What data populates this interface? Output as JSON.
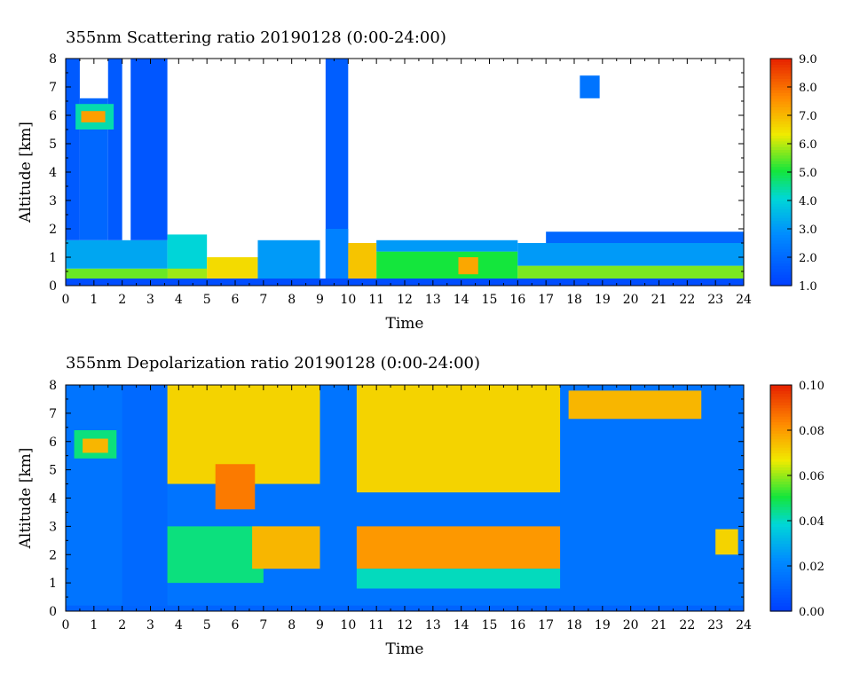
{
  "chart_data": [
    {
      "type": "heatmap",
      "title": "355nm Scattering ratio  20190128 (0:00-24:00)",
      "xlabel": "Time",
      "ylabel": "Altitude [km]",
      "xlim": [
        0,
        24
      ],
      "ylim": [
        0,
        8
      ],
      "x_ticks": [
        "0",
        "1",
        "2",
        "3",
        "4",
        "5",
        "6",
        "7",
        "8",
        "9",
        "10",
        "11",
        "12",
        "13",
        "14",
        "15",
        "16",
        "17",
        "18",
        "19",
        "20",
        "21",
        "22",
        "23",
        "24"
      ],
      "y_ticks": [
        "0",
        "1",
        "2",
        "3",
        "4",
        "5",
        "6",
        "7",
        "8"
      ],
      "colorbar": {
        "range": [
          1.0,
          9.0
        ],
        "ticks": [
          "1.0",
          "2.0",
          "3.0",
          "4.0",
          "5.0",
          "6.0",
          "7.0",
          "8.0",
          "9.0"
        ]
      },
      "background_color": "#ffffff",
      "regions": [
        {
          "t0": 0,
          "t1": 24,
          "z0": 0.0,
          "z1": 0.25,
          "value": 1.3
        },
        {
          "t0": 0,
          "t1": 3.6,
          "z0": 0.25,
          "z1": 0.6,
          "value": 5.5
        },
        {
          "t0": 0,
          "t1": 3.6,
          "z0": 0.6,
          "z1": 1.6,
          "value": 3.2
        },
        {
          "t0": 0,
          "t1": 0.5,
          "z0": 1.6,
          "z1": 8.0,
          "value": 1.6
        },
        {
          "t0": 0.5,
          "t1": 1.5,
          "z0": 1.6,
          "z1": 6.6,
          "value": 1.9
        },
        {
          "t0": 1.5,
          "t1": 2.0,
          "z0": 1.6,
          "z1": 8.0,
          "value": 1.6
        },
        {
          "t0": 2.3,
          "t1": 3.6,
          "z0": 1.6,
          "z1": 8.0,
          "value": 1.5
        },
        {
          "t0": 0.35,
          "t1": 1.7,
          "z0": 5.5,
          "z1": 6.4,
          "value": 4.3
        },
        {
          "t0": 0.55,
          "t1": 1.4,
          "z0": 5.75,
          "z1": 6.15,
          "value": 7.3
        },
        {
          "t0": 3.6,
          "t1": 5.0,
          "z0": 0.25,
          "z1": 1.8,
          "value": 4.0
        },
        {
          "t0": 3.6,
          "t1": 5.0,
          "z0": 0.25,
          "z1": 0.6,
          "value": 5.8
        },
        {
          "t0": 5.0,
          "t1": 6.8,
          "z0": 0.25,
          "z1": 1.0,
          "value": 6.5
        },
        {
          "t0": 6.8,
          "t1": 9.0,
          "z0": 0.25,
          "z1": 1.6,
          "value": 3.0
        },
        {
          "t0": 9.2,
          "t1": 10.0,
          "z0": 0.25,
          "z1": 8.0,
          "value": 1.7
        },
        {
          "t0": 9.2,
          "t1": 10.0,
          "z0": 0.25,
          "z1": 2.0,
          "value": 2.5
        },
        {
          "t0": 10.0,
          "t1": 11.0,
          "z0": 0.25,
          "z1": 1.5,
          "value": 6.8
        },
        {
          "t0": 11.0,
          "t1": 16.0,
          "z0": 0.25,
          "z1": 1.2,
          "value": 5.0
        },
        {
          "t0": 11.0,
          "t1": 16.0,
          "z0": 1.2,
          "z1": 1.6,
          "value": 3.0
        },
        {
          "t0": 13.9,
          "t1": 14.6,
          "z0": 0.4,
          "z1": 1.0,
          "value": 7.2
        },
        {
          "t0": 16.0,
          "t1": 24.0,
          "z0": 0.25,
          "z1": 0.7,
          "value": 5.6
        },
        {
          "t0": 16.0,
          "t1": 24.0,
          "z0": 0.7,
          "z1": 1.5,
          "value": 3.0
        },
        {
          "t0": 17.0,
          "t1": 24.0,
          "z0": 1.5,
          "z1": 1.9,
          "value": 1.9
        },
        {
          "t0": 18.2,
          "t1": 18.9,
          "z0": 6.6,
          "z1": 7.4,
          "value": 2.2
        }
      ]
    },
    {
      "type": "heatmap",
      "title": "355nm Depolarization ratio  20190128 (0:00-24:00)",
      "xlabel": "Time",
      "ylabel": "Altitude [km]",
      "xlim": [
        0,
        24
      ],
      "ylim": [
        0,
        8
      ],
      "x_ticks": [
        "0",
        "1",
        "2",
        "3",
        "4",
        "5",
        "6",
        "7",
        "8",
        "9",
        "10",
        "11",
        "12",
        "13",
        "14",
        "15",
        "16",
        "17",
        "18",
        "19",
        "20",
        "21",
        "22",
        "23",
        "24"
      ],
      "y_ticks": [
        "0",
        "1",
        "2",
        "3",
        "4",
        "5",
        "6",
        "7",
        "8"
      ],
      "colorbar": {
        "range": [
          0.0,
          0.1
        ],
        "ticks": [
          "0.00",
          "0.02",
          "0.04",
          "0.06",
          "0.08",
          "0.10"
        ]
      },
      "background_value": 0.015,
      "regions": [
        {
          "t0": 0.3,
          "t1": 1.8,
          "z0": 5.4,
          "z1": 6.4,
          "value": 0.045
        },
        {
          "t0": 0.6,
          "t1": 1.5,
          "z0": 5.6,
          "z1": 6.1,
          "value": 0.075
        },
        {
          "t0": 2.0,
          "t1": 3.6,
          "z0": 0.2,
          "z1": 8.0,
          "value": 0.012
        },
        {
          "t0": 3.6,
          "t1": 9.0,
          "z0": 4.5,
          "z1": 8.0,
          "value": 0.07
        },
        {
          "t0": 5.3,
          "t1": 6.7,
          "z0": 3.6,
          "z1": 5.2,
          "value": 0.085
        },
        {
          "t0": 3.6,
          "t1": 7.0,
          "z0": 1.0,
          "z1": 3.0,
          "value": 0.045
        },
        {
          "t0": 6.6,
          "t1": 9.0,
          "z0": 1.5,
          "z1": 3.0,
          "value": 0.075
        },
        {
          "t0": 10.3,
          "t1": 17.5,
          "z0": 4.2,
          "z1": 8.0,
          "value": 0.07
        },
        {
          "t0": 10.3,
          "t1": 17.5,
          "z0": 1.5,
          "z1": 3.0,
          "value": 0.08
        },
        {
          "t0": 10.3,
          "t1": 17.5,
          "z0": 0.8,
          "z1": 1.5,
          "value": 0.04
        },
        {
          "t0": 17.8,
          "t1": 22.5,
          "z0": 6.8,
          "z1": 7.8,
          "value": 0.075
        },
        {
          "t0": 23.0,
          "t1": 23.8,
          "z0": 2.0,
          "z1": 2.9,
          "value": 0.07
        },
        {
          "t0": 0,
          "t1": 24,
          "z0": 0.0,
          "z1": 0.2,
          "value": 0.01
        }
      ]
    }
  ]
}
